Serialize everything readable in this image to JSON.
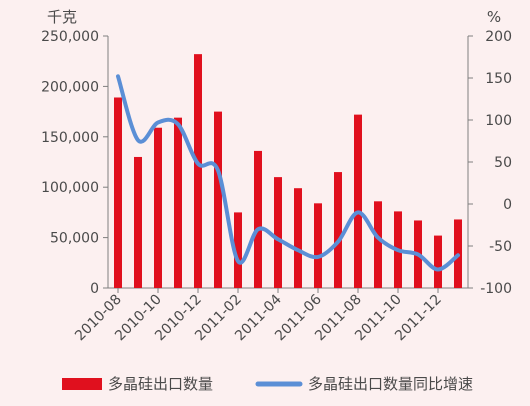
{
  "chart_data": {
    "type": "bar",
    "categories": [
      "2010-08",
      "2010-09",
      "2010-10",
      "2010-11",
      "2010-12",
      "2011-01",
      "2011-02",
      "2011-03",
      "2011-04",
      "2011-05",
      "2011-06",
      "2011-07",
      "2011-08",
      "2011-09",
      "2011-10",
      "2011-11",
      "2011-12",
      "2012-01"
    ],
    "x_tick_labels": [
      "2010-08",
      "2010-10",
      "2010-12",
      "2011-02",
      "2011-04",
      "2011-06",
      "2011-08",
      "2011-10",
      "2011-12"
    ],
    "left_axis": {
      "unit": "千克",
      "ylim": [
        0,
        250000
      ],
      "ticks": [
        0,
        50000,
        100000,
        150000,
        200000,
        250000
      ],
      "tick_labels": [
        "0",
        "50,000",
        "100,000",
        "150,000",
        "200,000",
        "250,000"
      ]
    },
    "right_axis": {
      "unit": "%",
      "ylim": [
        -100,
        200
      ],
      "ticks": [
        -100,
        -50,
        0,
        50,
        100,
        150,
        200
      ],
      "tick_labels": [
        "-100",
        "-50",
        "0",
        "50",
        "100",
        "150",
        "200"
      ]
    },
    "series": [
      {
        "name": "多晶硅出口数量",
        "type": "bar",
        "axis": "left",
        "color": "#e0101e",
        "values": [
          189000,
          130000,
          159000,
          169000,
          232000,
          175000,
          75000,
          136000,
          110000,
          99000,
          84000,
          115000,
          172000,
          86000,
          76000,
          67000,
          52000,
          68000
        ]
      },
      {
        "name": "多晶硅出口数量同比增速",
        "type": "line",
        "axis": "right",
        "color": "#5b8fd6",
        "values": [
          152,
          76,
          97,
          95,
          48,
          40,
          -68,
          -30,
          -42,
          -55,
          -63,
          -45,
          -10,
          -40,
          -55,
          -60,
          -78,
          -61
        ]
      }
    ],
    "grid": false,
    "legend_position": "bottom"
  }
}
